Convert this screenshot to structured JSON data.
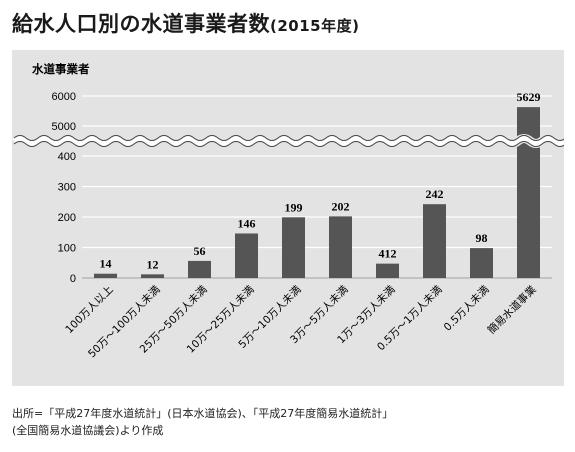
{
  "title": {
    "main": "給水人口別の水道事業者数",
    "sub": "(2015年度)"
  },
  "source": {
    "line1": "出所=「平成27年度水道統計」(日本水道協会)、「平成27年度簡易水道統計」",
    "line2": "(全国簡易水道協議会)より作成"
  },
  "colors": {
    "bar": "#555555",
    "panel": "#e3e3e3",
    "grid": "#ffffff"
  },
  "chart_data": {
    "type": "bar",
    "ylabel": "水道事業者",
    "categories": [
      "100万人以上",
      "50万〜100万人未満",
      "25万〜50万人未満",
      "10万〜25万人未満",
      "5万〜10万人未満",
      "3万〜5万人未満",
      "1万〜3万人未満",
      "0.5万〜1万人未満",
      "0.5万人未満",
      "簡易水道事業"
    ],
    "values": [
      14,
      12,
      56,
      146,
      199,
      202,
      412,
      242,
      98,
      5629
    ],
    "value_labels": [
      "14",
      "12",
      "56",
      "146",
      "199",
      "202",
      "412",
      "242",
      "98",
      "5629"
    ],
    "axis_break": true,
    "lower_segment": {
      "ylim": [
        0,
        400
      ],
      "ticks": [
        0,
        100,
        200,
        300,
        400
      ]
    },
    "upper_segment": {
      "ylim": [
        5000,
        6000
      ],
      "ticks": [
        5000,
        6000
      ]
    },
    "tick_labels": [
      "0",
      "100",
      "200",
      "300",
      "400",
      "5000",
      "6000"
    ],
    "grid": true
  }
}
